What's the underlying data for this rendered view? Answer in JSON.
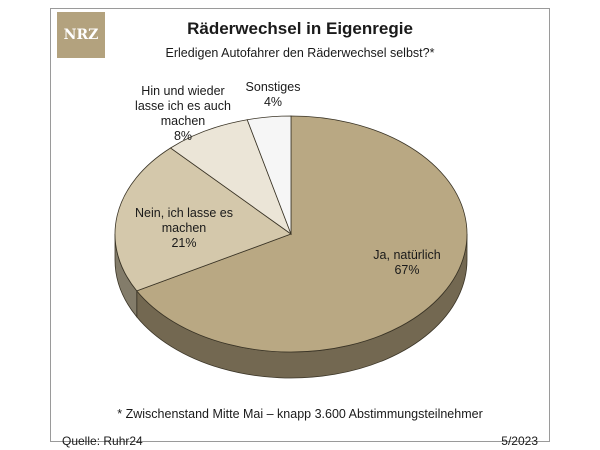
{
  "logo": {
    "text": "NRZ"
  },
  "chart_data": {
    "type": "pie",
    "title": "Räderwechsel in Eigenregie",
    "subtitle": "Erledigen Autofahrer den Räderwechsel selbst?*",
    "slices": [
      {
        "lines": [
          "Ja, natürlich"
        ],
        "percent_label": "67%",
        "value": 67,
        "color": "#b9a883"
      },
      {
        "lines": [
          "Nein, ich lasse es",
          "machen"
        ],
        "percent_label": "21%",
        "value": 21,
        "color": "#d4c8ab"
      },
      {
        "lines": [
          "Hin und wieder",
          "lasse ich es auch",
          "machen"
        ],
        "percent_label": "8%",
        "value": 8,
        "color": "#ebe5d7"
      },
      {
        "lines": [
          "Sonstiges"
        ],
        "percent_label": "4%",
        "value": 4,
        "color": "#f6f6f6"
      }
    ],
    "footnote": "* Zwischenstand Mitte Mai – knapp 3.600 Abstimmungsteilnehmer",
    "source": "Quelle: Ruhr24",
    "date": "5/2023"
  }
}
